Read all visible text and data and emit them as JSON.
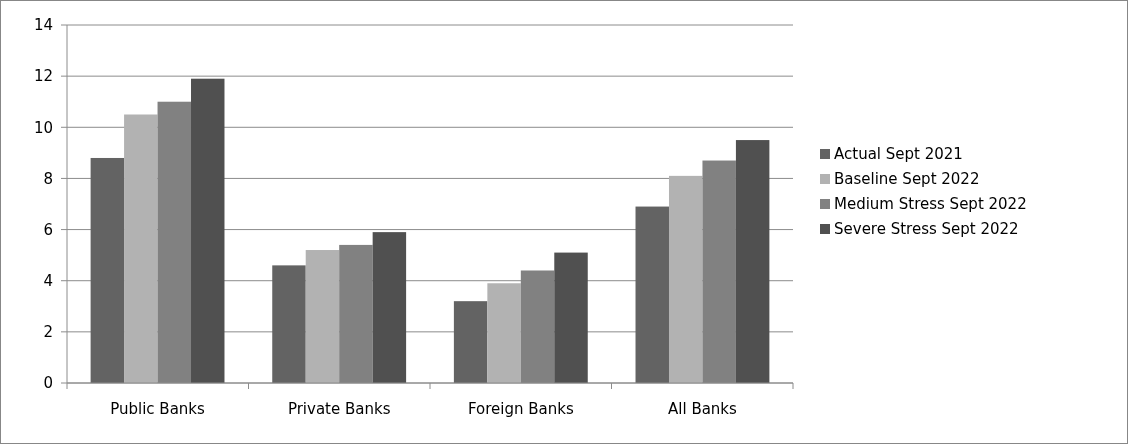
{
  "chart_data": {
    "type": "bar",
    "categories": [
      "Public Banks",
      "Private Banks",
      "Foreign Banks",
      "All Banks"
    ],
    "series": [
      {
        "name": "Actual Sept 2021",
        "color": "#636363",
        "values": [
          8.8,
          4.6,
          3.2,
          6.9
        ]
      },
      {
        "name": "Baseline Sept 2022",
        "color": "#b2b2b2",
        "values": [
          10.5,
          5.2,
          3.9,
          8.1
        ]
      },
      {
        "name": "Medium Stress Sept 2022",
        "color": "#818181",
        "values": [
          11.0,
          5.4,
          4.4,
          8.7
        ]
      },
      {
        "name": "Severe Stress Sept 2022",
        "color": "#505050",
        "values": [
          11.9,
          5.9,
          5.1,
          9.5
        ]
      }
    ],
    "ylim": [
      0,
      14
    ],
    "yticks": [
      0,
      2,
      4,
      6,
      8,
      10,
      12,
      14
    ],
    "grid": "y",
    "legend": "right"
  }
}
